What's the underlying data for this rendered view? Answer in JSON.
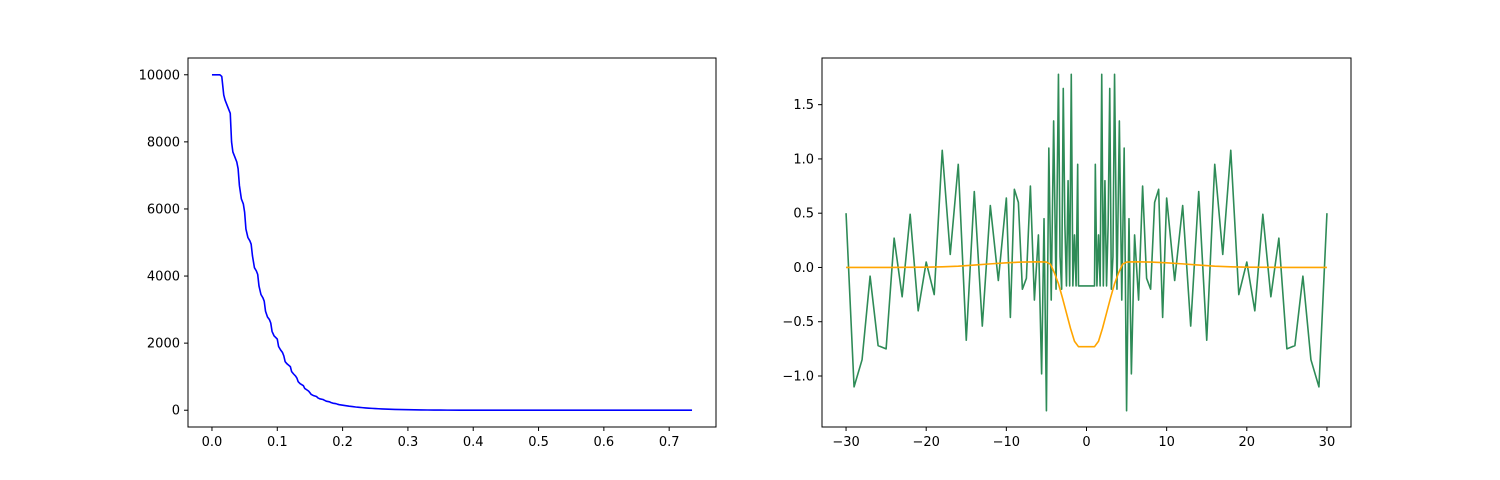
{
  "colors": {
    "background": "#ffffff",
    "axes": "#000000",
    "decay": "#0000ff",
    "noisy": "#2e8b57",
    "smooth": "#ffa500"
  },
  "chart_data": [
    {
      "type": "line",
      "title": "",
      "xlabel": "",
      "ylabel": "",
      "xlim": [
        -0.0367,
        0.7717
      ],
      "ylim": [
        -500,
        10500
      ],
      "xticks": [
        0.0,
        0.1,
        0.2,
        0.3,
        0.4,
        0.5,
        0.6,
        0.7
      ],
      "xtick_labels": [
        "0.0",
        "0.1",
        "0.2",
        "0.3",
        "0.4",
        "0.5",
        "0.6",
        "0.7"
      ],
      "yticks": [
        0,
        2000,
        4000,
        6000,
        8000,
        10000
      ],
      "ytick_labels": [
        "0",
        "2000",
        "4000",
        "6000",
        "8000",
        "10000"
      ],
      "grid": false,
      "series": [
        {
          "color": "#0000ff",
          "x": [
            0.0,
            0.003,
            0.006,
            0.009,
            0.012,
            0.015,
            0.018,
            0.02,
            0.022,
            0.025,
            0.028,
            0.03,
            0.032,
            0.035,
            0.038,
            0.04,
            0.042,
            0.045,
            0.048,
            0.05,
            0.052,
            0.055,
            0.058,
            0.06,
            0.062,
            0.065,
            0.068,
            0.07,
            0.072,
            0.075,
            0.078,
            0.08,
            0.082,
            0.085,
            0.088,
            0.09,
            0.092,
            0.095,
            0.1,
            0.102,
            0.105,
            0.108,
            0.11,
            0.112,
            0.115,
            0.12,
            0.122,
            0.125,
            0.128,
            0.13,
            0.132,
            0.135,
            0.14,
            0.142,
            0.145,
            0.148,
            0.15,
            0.152,
            0.155,
            0.16,
            0.162,
            0.165,
            0.17,
            0.172,
            0.175,
            0.18,
            0.182,
            0.185,
            0.19,
            0.192,
            0.195,
            0.2,
            0.205,
            0.21,
            0.215,
            0.22,
            0.225,
            0.23,
            0.235,
            0.24,
            0.245,
            0.25,
            0.255,
            0.26,
            0.265,
            0.27,
            0.28,
            0.29,
            0.3,
            0.31,
            0.32,
            0.33,
            0.34,
            0.35,
            0.36,
            0.38,
            0.4,
            0.42,
            0.45,
            0.5,
            0.55,
            0.6,
            0.65,
            0.7,
            0.735
          ],
          "y": [
            10000,
            10000,
            10000,
            10000,
            10000,
            9950,
            9400,
            9250,
            9150,
            9000,
            8850,
            8000,
            7700,
            7550,
            7400,
            7200,
            6700,
            6300,
            6150,
            5900,
            5400,
            5150,
            5050,
            4950,
            4600,
            4250,
            4150,
            4050,
            3700,
            3450,
            3350,
            3250,
            2950,
            2780,
            2700,
            2600,
            2350,
            2220,
            2120,
            1900,
            1800,
            1720,
            1620,
            1450,
            1380,
            1300,
            1150,
            1080,
            1020,
            960,
            850,
            790,
            730,
            650,
            610,
            570,
            520,
            470,
            440,
            410,
            370,
            340,
            320,
            300,
            270,
            250,
            230,
            210,
            195,
            180,
            165,
            150,
            135,
            120,
            108,
            96,
            86,
            77,
            69,
            62,
            55,
            49,
            44,
            39,
            35,
            31,
            25,
            20,
            16,
            12,
            9,
            7,
            5,
            4,
            3,
            2,
            1,
            1,
            0,
            0,
            0,
            0,
            0,
            0,
            0
          ]
        }
      ]
    },
    {
      "type": "line",
      "title": "",
      "xlabel": "",
      "ylabel": "",
      "xlim": [
        -33,
        33
      ],
      "ylim": [
        -1.47,
        1.93
      ],
      "xticks": [
        -30,
        -20,
        -10,
        0,
        10,
        20,
        30
      ],
      "xtick_labels": [
        "−30",
        "−20",
        "−10",
        "0",
        "10",
        "20",
        "30"
      ],
      "yticks": [
        -1.0,
        -0.5,
        0.0,
        0.5,
        1.0,
        1.5
      ],
      "ytick_labels": [
        "−1.0",
        "−0.5",
        "0.0",
        "0.5",
        "1.0",
        "1.5"
      ],
      "grid": false,
      "series": [
        {
          "color": "#2e8b57",
          "x": [
            -30.0,
            -29.0,
            -28.0,
            -27.0,
            -26.0,
            -25.0,
            -24.0,
            -23.0,
            -22.0,
            -21.0,
            -20.0,
            -19.0,
            -18.0,
            -17.0,
            -16.0,
            -15.0,
            -14.0,
            -13.0,
            -12.0,
            -11.0,
            -10.0,
            -9.5,
            -9.0,
            -8.5,
            -8.0,
            -7.5,
            -7.0,
            -6.5,
            -6.0,
            -5.6,
            -5.3,
            -5.0,
            -4.7,
            -4.4,
            -4.1,
            -3.8,
            -3.5,
            -3.3,
            -3.1,
            -2.9,
            -2.7,
            -2.5,
            -2.3,
            -2.1,
            -1.9,
            -1.7,
            -1.5,
            -1.3,
            -1.1,
            -1.0,
            1.0,
            1.1,
            1.3,
            1.5,
            1.7,
            1.9,
            2.1,
            2.3,
            2.5,
            2.7,
            2.9,
            3.1,
            3.3,
            3.5,
            3.8,
            4.1,
            4.4,
            4.7,
            5.0,
            5.3,
            5.6,
            6.0,
            6.5,
            7.0,
            7.5,
            8.0,
            8.5,
            9.0,
            9.5,
            10.0,
            11.0,
            12.0,
            13.0,
            14.0,
            15.0,
            16.0,
            17.0,
            18.0,
            19.0,
            20.0,
            21.0,
            22.0,
            23.0,
            24.0,
            25.0,
            26.0,
            27.0,
            28.0,
            29.0,
            30.0
          ],
          "y": [
            0.5,
            -1.1,
            -0.85,
            -0.08,
            -0.72,
            -0.75,
            0.27,
            -0.27,
            0.49,
            -0.4,
            0.05,
            -0.25,
            1.08,
            0.12,
            0.95,
            -0.67,
            0.7,
            -0.54,
            0.57,
            -0.12,
            0.64,
            -0.46,
            0.72,
            0.6,
            -0.2,
            -0.1,
            0.75,
            -0.3,
            0.3,
            -0.98,
            0.45,
            -1.32,
            1.1,
            -0.3,
            1.35,
            -0.2,
            1.78,
            0.1,
            -0.2,
            1.65,
            0.4,
            -0.17,
            0.8,
            -0.17,
            1.78,
            -0.17,
            0.3,
            -0.17,
            0.95,
            -0.17,
            -0.17,
            0.95,
            -0.17,
            0.3,
            -0.17,
            1.78,
            -0.17,
            0.8,
            -0.17,
            0.4,
            1.65,
            -0.2,
            0.1,
            1.78,
            -0.2,
            1.35,
            -0.3,
            1.1,
            -1.32,
            0.45,
            -0.98,
            0.3,
            -0.3,
            0.75,
            -0.1,
            -0.2,
            0.6,
            0.72,
            -0.46,
            0.64,
            -0.12,
            0.57,
            -0.54,
            0.7,
            -0.67,
            0.95,
            0.12,
            1.08,
            -0.25,
            0.05,
            -0.4,
            0.49,
            -0.27,
            0.27,
            -0.75,
            -0.72,
            -0.08,
            -0.85,
            -1.1,
            0.5
          ]
        },
        {
          "color": "#ffa500",
          "x": [
            -30,
            -25,
            -20,
            -18,
            -16,
            -14,
            -12,
            -10,
            -8,
            -6,
            -5,
            -4.5,
            -4,
            -3.5,
            -3,
            -2.5,
            -2,
            -1.5,
            -1,
            1,
            1.5,
            2,
            2.5,
            3,
            3.5,
            4,
            4.5,
            5,
            6,
            8,
            10,
            12,
            14,
            16,
            18,
            20,
            25,
            30
          ],
          "y": [
            0.0,
            0.0,
            0.003,
            0.006,
            0.012,
            0.022,
            0.033,
            0.043,
            0.05,
            0.052,
            0.05,
            0.03,
            -0.05,
            -0.15,
            -0.28,
            -0.42,
            -0.56,
            -0.68,
            -0.73,
            -0.73,
            -0.68,
            -0.56,
            -0.42,
            -0.28,
            -0.15,
            -0.05,
            0.03,
            0.05,
            0.052,
            0.05,
            0.043,
            0.033,
            0.022,
            0.012,
            0.006,
            0.003,
            0.0,
            0.0
          ]
        }
      ]
    }
  ]
}
